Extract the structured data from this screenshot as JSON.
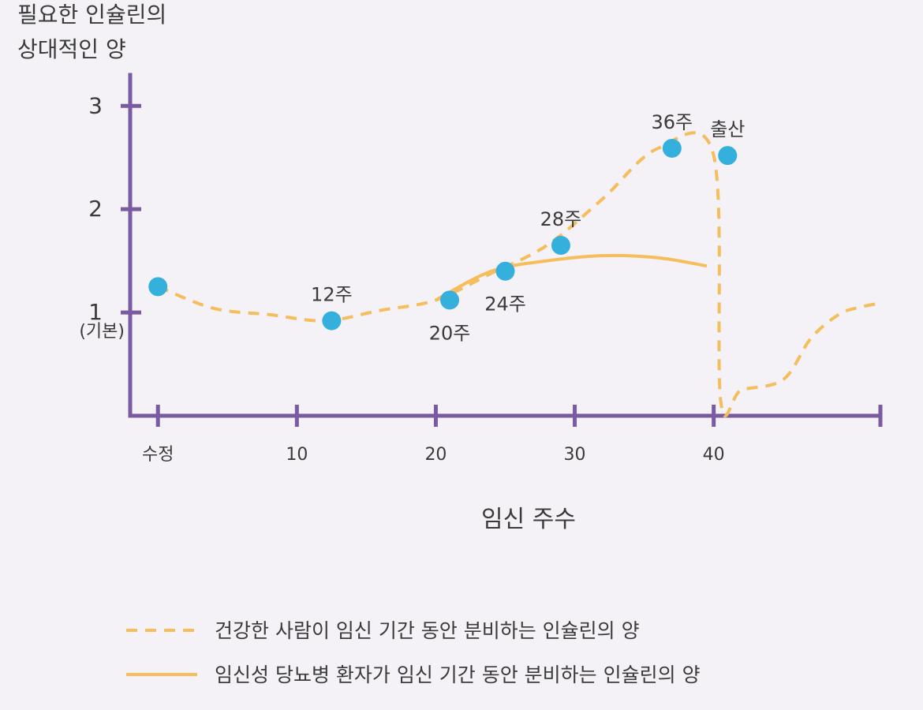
{
  "chart_data": {
    "type": "line",
    "ylabel_lines": [
      "필요한 인슐린의",
      "상대적인 양"
    ],
    "xlabel": "임신 주수",
    "xlim": [
      -2,
      52
    ],
    "ylim": [
      0,
      3.3
    ],
    "x_ticks": [
      {
        "x": 0,
        "label": "수정"
      },
      {
        "x": 10,
        "label": "10"
      },
      {
        "x": 20,
        "label": "20"
      },
      {
        "x": 30,
        "label": "30"
      },
      {
        "x": 40,
        "label": "40"
      },
      {
        "x": 52,
        "label": ""
      }
    ],
    "y_ticks": [
      {
        "y": 1,
        "label": "1",
        "sublabel": "(기본)"
      },
      {
        "y": 2,
        "label": "2",
        "sublabel": ""
      },
      {
        "y": 3,
        "label": "3",
        "sublabel": ""
      }
    ],
    "series": [
      {
        "name": "건강한 사람이 임신 기간 동안 분비하는 인슐린의 양",
        "style": "dashed",
        "color": "#f5bd5c",
        "x": [
          0,
          4,
          8,
          12,
          16,
          20,
          24,
          28,
          32,
          36,
          40,
          40.5,
          42,
          45,
          47,
          49,
          50.5,
          52
        ],
        "y": [
          1.25,
          1.04,
          0.98,
          0.92,
          1.02,
          1.12,
          1.38,
          1.65,
          2.1,
          2.59,
          2.52,
          0.15,
          0.25,
          0.35,
          0.75,
          0.98,
          1.05,
          1.09
        ]
      },
      {
        "name": "임신성 당뇨병 환자가 임신 기간 동안 분비하는 인슐린의 양",
        "style": "solid",
        "color": "#f5bd5c",
        "x": [
          20,
          24,
          28,
          32,
          36,
          39.5
        ],
        "y": [
          1.12,
          1.4,
          1.5,
          1.55,
          1.53,
          1.45
        ]
      }
    ],
    "points": [
      {
        "x": 0,
        "y": 1.25,
        "label": "",
        "label_pos": "none"
      },
      {
        "x": 12.5,
        "y": 0.92,
        "label": "12주",
        "label_pos": "above"
      },
      {
        "x": 21,
        "y": 1.12,
        "label": "20주",
        "label_pos": "below"
      },
      {
        "x": 25,
        "y": 1.4,
        "label": "24주",
        "label_pos": "below"
      },
      {
        "x": 29,
        "y": 1.65,
        "label": "28주",
        "label_pos": "above"
      },
      {
        "x": 37,
        "y": 2.59,
        "label": "36주",
        "label_pos": "above"
      },
      {
        "x": 41,
        "y": 2.52,
        "label": "출산",
        "label_pos": "above"
      }
    ],
    "point_color": "#35b0dc",
    "axis_color": "#7a5aa0",
    "legend_position": "bottom",
    "grid": false
  }
}
